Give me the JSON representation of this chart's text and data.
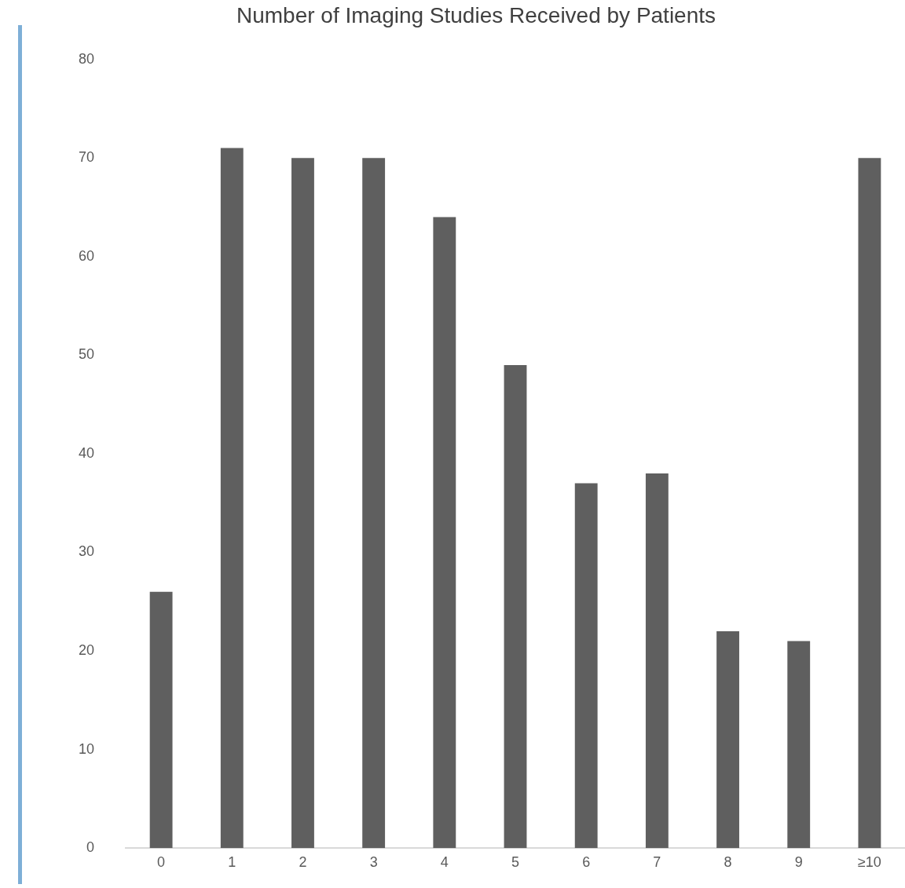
{
  "chart_data": {
    "type": "bar",
    "title": "Number of Imaging Studies Received by Patients",
    "categories": [
      "0",
      "1",
      "2",
      "3",
      "4",
      "5",
      "6",
      "7",
      "8",
      "9",
      "≥10"
    ],
    "values": [
      26,
      71,
      70,
      70,
      64,
      49,
      37,
      38,
      22,
      21,
      70
    ],
    "color": "#5f5f5f",
    "ylim": [
      0,
      80
    ],
    "yticks": [
      0,
      10,
      20,
      30,
      40,
      50,
      60,
      70,
      80
    ],
    "grid": false,
    "legend": false
  }
}
